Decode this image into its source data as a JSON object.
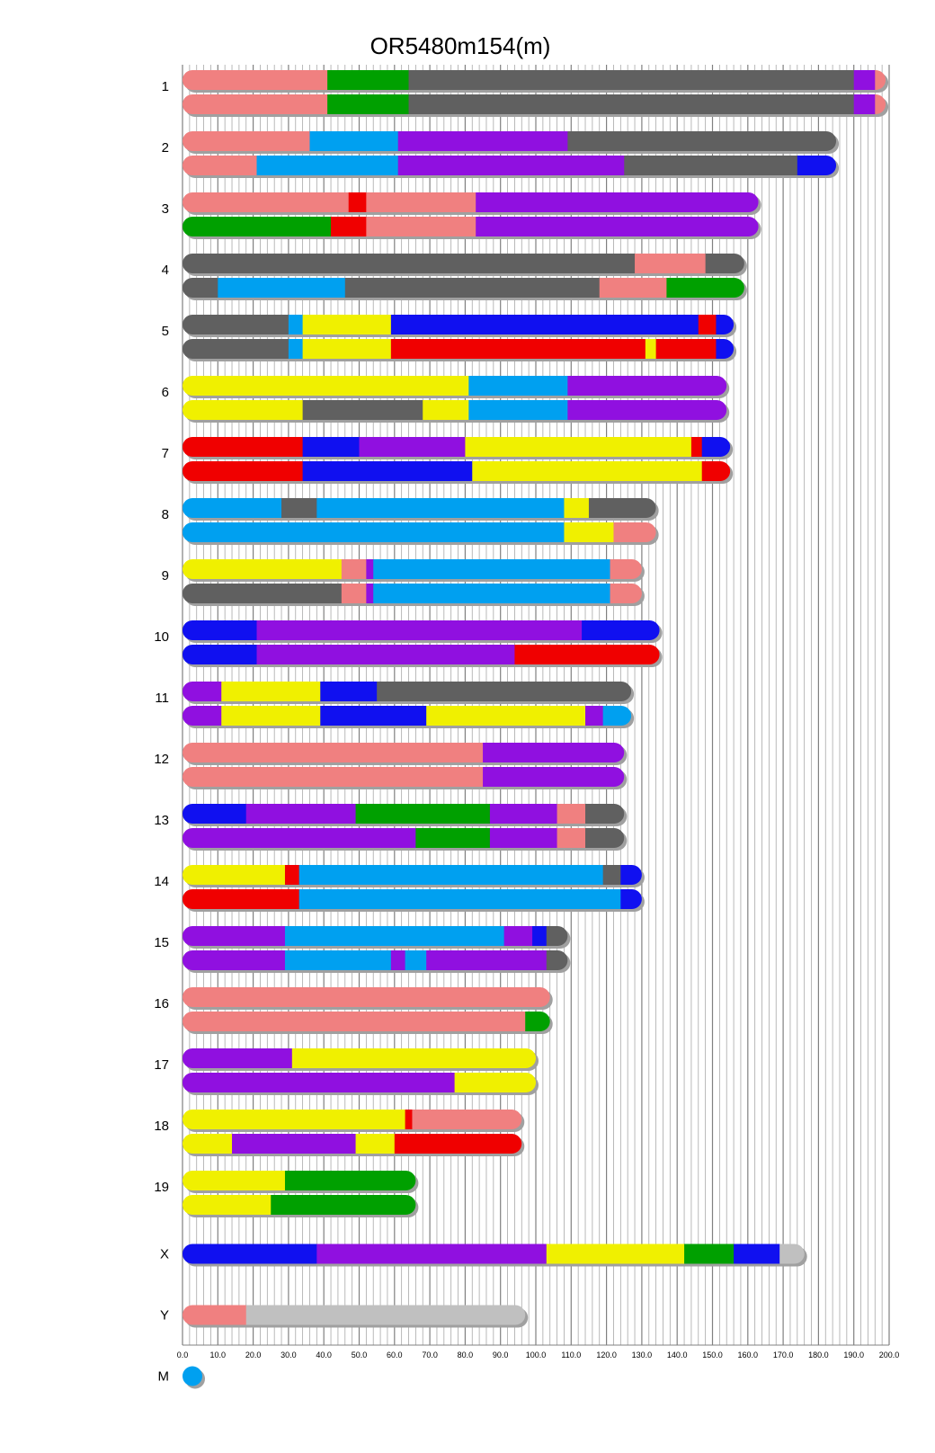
{
  "chart_data": {
    "type": "chromosome-painting",
    "title": "OR5480m154(m)",
    "xlabel": "",
    "ylabel": "",
    "xlim": [
      0,
      200
    ],
    "grid": true,
    "x_tick_labels": [
      "0.0",
      "10.0",
      "20.0",
      "30.0",
      "40.0",
      "50.0",
      "60.0",
      "70.0",
      "80.0",
      "90.0",
      "100.0",
      "110.0",
      "120.0",
      "130.0",
      "140.0",
      "150.0",
      "160.0",
      "170.0",
      "180.0",
      "190.0",
      "200.0"
    ],
    "colors": {
      "salmon": "#f08080",
      "green": "#00a000",
      "darkgray": "#606060",
      "purple": "#9010e0",
      "skyblue": "#00a0f0",
      "blue": "#1010f0",
      "red": "#f00000",
      "yellow": "#f0f000",
      "lightgray": "#c0c0c0"
    },
    "chromosomes": [
      {
        "name": "1",
        "haplotypes": [
          [
            [
              0,
              41,
              "salmon"
            ],
            [
              41,
              64,
              "green"
            ],
            [
              64,
              190,
              "darkgray"
            ],
            [
              190,
              196,
              "purple"
            ],
            [
              196,
              199,
              "salmon"
            ]
          ],
          [
            [
              0,
              41,
              "salmon"
            ],
            [
              41,
              64,
              "green"
            ],
            [
              64,
              190,
              "darkgray"
            ],
            [
              190,
              196,
              "purple"
            ],
            [
              196,
              199,
              "salmon"
            ]
          ]
        ]
      },
      {
        "name": "2",
        "haplotypes": [
          [
            [
              0,
              36,
              "salmon"
            ],
            [
              36,
              61,
              "skyblue"
            ],
            [
              61,
              109,
              "purple"
            ],
            [
              109,
              185,
              "darkgray"
            ]
          ],
          [
            [
              0,
              21,
              "salmon"
            ],
            [
              21,
              61,
              "skyblue"
            ],
            [
              61,
              125,
              "purple"
            ],
            [
              125,
              174,
              "darkgray"
            ],
            [
              174,
              185,
              "blue"
            ]
          ]
        ]
      },
      {
        "name": "3",
        "haplotypes": [
          [
            [
              0,
              47,
              "salmon"
            ],
            [
              47,
              52,
              "red"
            ],
            [
              52,
              83,
              "salmon"
            ],
            [
              83,
              163,
              "purple"
            ]
          ],
          [
            [
              0,
              42,
              "green"
            ],
            [
              42,
              52,
              "red"
            ],
            [
              52,
              83,
              "salmon"
            ],
            [
              83,
              163,
              "purple"
            ]
          ]
        ]
      },
      {
        "name": "4",
        "haplotypes": [
          [
            [
              0,
              128,
              "darkgray"
            ],
            [
              128,
              148,
              "salmon"
            ],
            [
              148,
              159,
              "darkgray"
            ]
          ],
          [
            [
              0,
              10,
              "darkgray"
            ],
            [
              10,
              46,
              "skyblue"
            ],
            [
              46,
              118,
              "darkgray"
            ],
            [
              118,
              137,
              "salmon"
            ],
            [
              137,
              159,
              "green"
            ]
          ]
        ]
      },
      {
        "name": "5",
        "haplotypes": [
          [
            [
              0,
              30,
              "darkgray"
            ],
            [
              30,
              34,
              "skyblue"
            ],
            [
              34,
              59,
              "yellow"
            ],
            [
              59,
              146,
              "blue"
            ],
            [
              146,
              151,
              "red"
            ],
            [
              151,
              156,
              "blue"
            ]
          ],
          [
            [
              0,
              30,
              "darkgray"
            ],
            [
              30,
              34,
              "skyblue"
            ],
            [
              34,
              59,
              "yellow"
            ],
            [
              59,
              131,
              "red"
            ],
            [
              131,
              134,
              "yellow"
            ],
            [
              134,
              151,
              "red"
            ],
            [
              151,
              156,
              "blue"
            ]
          ]
        ]
      },
      {
        "name": "6",
        "haplotypes": [
          [
            [
              0,
              81,
              "yellow"
            ],
            [
              81,
              109,
              "skyblue"
            ],
            [
              109,
              154,
              "purple"
            ]
          ],
          [
            [
              0,
              34,
              "yellow"
            ],
            [
              34,
              68,
              "darkgray"
            ],
            [
              68,
              81,
              "yellow"
            ],
            [
              81,
              109,
              "skyblue"
            ],
            [
              109,
              154,
              "purple"
            ]
          ]
        ]
      },
      {
        "name": "7",
        "haplotypes": [
          [
            [
              0,
              34,
              "red"
            ],
            [
              34,
              50,
              "blue"
            ],
            [
              50,
              80,
              "purple"
            ],
            [
              80,
              144,
              "yellow"
            ],
            [
              144,
              147,
              "red"
            ],
            [
              147,
              155,
              "blue"
            ]
          ],
          [
            [
              0,
              34,
              "red"
            ],
            [
              34,
              82,
              "blue"
            ],
            [
              82,
              147,
              "yellow"
            ],
            [
              147,
              155,
              "red"
            ]
          ]
        ]
      },
      {
        "name": "8",
        "haplotypes": [
          [
            [
              0,
              28,
              "skyblue"
            ],
            [
              28,
              38,
              "darkgray"
            ],
            [
              38,
              108,
              "skyblue"
            ],
            [
              108,
              115,
              "yellow"
            ],
            [
              115,
              134,
              "darkgray"
            ]
          ],
          [
            [
              0,
              108,
              "skyblue"
            ],
            [
              108,
              122,
              "yellow"
            ],
            [
              122,
              134,
              "salmon"
            ]
          ]
        ]
      },
      {
        "name": "9",
        "haplotypes": [
          [
            [
              0,
              45,
              "yellow"
            ],
            [
              45,
              52,
              "salmon"
            ],
            [
              52,
              54,
              "purple"
            ],
            [
              54,
              121,
              "skyblue"
            ],
            [
              121,
              130,
              "salmon"
            ]
          ],
          [
            [
              0,
              45,
              "darkgray"
            ],
            [
              45,
              52,
              "salmon"
            ],
            [
              52,
              54,
              "purple"
            ],
            [
              54,
              121,
              "skyblue"
            ],
            [
              121,
              130,
              "salmon"
            ]
          ]
        ]
      },
      {
        "name": "10",
        "haplotypes": [
          [
            [
              0,
              21,
              "blue"
            ],
            [
              21,
              113,
              "purple"
            ],
            [
              113,
              135,
              "blue"
            ]
          ],
          [
            [
              0,
              21,
              "blue"
            ],
            [
              21,
              94,
              "purple"
            ],
            [
              94,
              135,
              "red"
            ]
          ]
        ]
      },
      {
        "name": "11",
        "haplotypes": [
          [
            [
              0,
              11,
              "purple"
            ],
            [
              11,
              39,
              "yellow"
            ],
            [
              39,
              55,
              "blue"
            ],
            [
              55,
              127,
              "darkgray"
            ]
          ],
          [
            [
              0,
              11,
              "purple"
            ],
            [
              11,
              39,
              "yellow"
            ],
            [
              39,
              69,
              "blue"
            ],
            [
              69,
              114,
              "yellow"
            ],
            [
              114,
              119,
              "purple"
            ],
            [
              119,
              127,
              "skyblue"
            ]
          ]
        ]
      },
      {
        "name": "12",
        "haplotypes": [
          [
            [
              0,
              85,
              "salmon"
            ],
            [
              85,
              125,
              "purple"
            ]
          ],
          [
            [
              0,
              85,
              "salmon"
            ],
            [
              85,
              125,
              "purple"
            ]
          ]
        ]
      },
      {
        "name": "13",
        "haplotypes": [
          [
            [
              0,
              18,
              "blue"
            ],
            [
              18,
              49,
              "purple"
            ],
            [
              49,
              87,
              "green"
            ],
            [
              87,
              106,
              "purple"
            ],
            [
              106,
              114,
              "salmon"
            ],
            [
              114,
              125,
              "darkgray"
            ]
          ],
          [
            [
              0,
              66,
              "purple"
            ],
            [
              66,
              87,
              "green"
            ],
            [
              87,
              106,
              "purple"
            ],
            [
              106,
              114,
              "salmon"
            ],
            [
              114,
              125,
              "darkgray"
            ]
          ]
        ]
      },
      {
        "name": "14",
        "haplotypes": [
          [
            [
              0,
              29,
              "yellow"
            ],
            [
              29,
              33,
              "red"
            ],
            [
              33,
              119,
              "skyblue"
            ],
            [
              119,
              124,
              "darkgray"
            ],
            [
              124,
              130,
              "blue"
            ]
          ],
          [
            [
              0,
              33,
              "red"
            ],
            [
              33,
              124,
              "skyblue"
            ],
            [
              124,
              130,
              "blue"
            ]
          ]
        ]
      },
      {
        "name": "15",
        "haplotypes": [
          [
            [
              0,
              29,
              "purple"
            ],
            [
              29,
              91,
              "skyblue"
            ],
            [
              91,
              99,
              "purple"
            ],
            [
              99,
              103,
              "blue"
            ],
            [
              103,
              109,
              "darkgray"
            ]
          ],
          [
            [
              0,
              29,
              "purple"
            ],
            [
              29,
              59,
              "skyblue"
            ],
            [
              59,
              63,
              "purple"
            ],
            [
              63,
              69,
              "skyblue"
            ],
            [
              69,
              103,
              "purple"
            ],
            [
              103,
              109,
              "darkgray"
            ]
          ]
        ]
      },
      {
        "name": "16",
        "haplotypes": [
          [
            [
              0,
              104,
              "salmon"
            ]
          ],
          [
            [
              0,
              97,
              "salmon"
            ],
            [
              97,
              104,
              "green"
            ]
          ]
        ]
      },
      {
        "name": "17",
        "haplotypes": [
          [
            [
              0,
              31,
              "purple"
            ],
            [
              31,
              100,
              "yellow"
            ]
          ],
          [
            [
              0,
              77,
              "purple"
            ],
            [
              77,
              100,
              "yellow"
            ]
          ]
        ]
      },
      {
        "name": "18",
        "haplotypes": [
          [
            [
              0,
              63,
              "yellow"
            ],
            [
              63,
              65,
              "red"
            ],
            [
              65,
              96,
              "salmon"
            ]
          ],
          [
            [
              0,
              14,
              "yellow"
            ],
            [
              14,
              49,
              "purple"
            ],
            [
              49,
              60,
              "yellow"
            ],
            [
              60,
              96,
              "red"
            ]
          ]
        ]
      },
      {
        "name": "19",
        "haplotypes": [
          [
            [
              0,
              29,
              "yellow"
            ],
            [
              29,
              66,
              "green"
            ]
          ],
          [
            [
              0,
              25,
              "yellow"
            ],
            [
              25,
              66,
              "green"
            ]
          ]
        ]
      },
      {
        "name": "X",
        "haplotypes": [
          [
            [
              0,
              38,
              "blue"
            ],
            [
              38,
              103,
              "purple"
            ],
            [
              103,
              142,
              "yellow"
            ],
            [
              142,
              156,
              "green"
            ],
            [
              156,
              169,
              "blue"
            ],
            [
              169,
              176,
              "lightgray"
            ]
          ]
        ]
      },
      {
        "name": "Y",
        "haplotypes": [
          [
            [
              0,
              18,
              "salmon"
            ],
            [
              18,
              97,
              "lightgray"
            ]
          ]
        ]
      },
      {
        "name": "M",
        "haplotypes": [
          [
            [
              0,
              3,
              "skyblue"
            ]
          ]
        ]
      }
    ]
  }
}
